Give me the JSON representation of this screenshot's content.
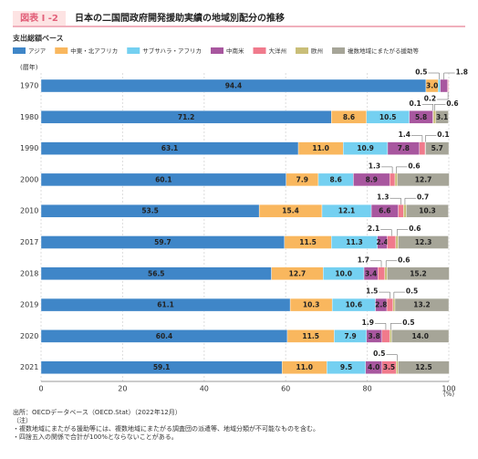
{
  "header": {
    "badge": "図表 I -2",
    "title": "日本の二国間政府開発援助実績の地域別配分の推移"
  },
  "chart_data": {
    "type": "stacked-bar-horizontal",
    "subtitle": "支出総額ベース",
    "y_axis_label": "(暦年)",
    "x_axis_label": "(%)",
    "categories": [
      "1970",
      "1980",
      "1990",
      "2000",
      "2010",
      "2017",
      "2018",
      "2019",
      "2020",
      "2021"
    ],
    "series": [
      {
        "name": "アジア",
        "color": "#3f86c8",
        "values": [
          94.4,
          71.2,
          63.1,
          60.1,
          53.5,
          59.7,
          56.5,
          61.1,
          60.4,
          59.1
        ],
        "value_labels": [
          "94.4",
          "71.2",
          "63.1",
          "60.1",
          "53.5",
          "59.7",
          "56.5",
          "61.1",
          "60.4",
          "59.1"
        ]
      },
      {
        "name": "中東・北アフリカ",
        "color": "#f9b75e",
        "values": [
          3.0,
          8.6,
          11.0,
          7.9,
          15.4,
          11.5,
          12.7,
          10.3,
          11.5,
          11.0
        ],
        "value_labels": [
          "3.0",
          "8.6",
          "11.0",
          "7.9",
          "15.4",
          "11.5",
          "12.7",
          "10.3",
          "11.5",
          "11.0"
        ]
      },
      {
        "name": "サブサハラ・アフリカ",
        "color": "#74d0f1",
        "values": [
          0.5,
          10.5,
          10.9,
          8.6,
          12.1,
          11.3,
          10.0,
          10.6,
          7.9,
          9.5
        ],
        "value_labels": [
          "0.5",
          "10.5",
          "10.9",
          "8.6",
          "12.1",
          "11.3",
          "10.0",
          "10.6",
          "7.9",
          "9.5"
        ]
      },
      {
        "name": "中南米",
        "color": "#a8579f",
        "values": [
          1.8,
          5.8,
          7.8,
          8.9,
          6.6,
          2.4,
          3.4,
          2.8,
          3.8,
          4.0
        ],
        "value_labels": [
          "1.8",
          "5.8",
          "7.8",
          "8.9",
          "6.6",
          "2.4",
          "3.4",
          "2.8",
          "3.8",
          "4.0"
        ]
      },
      {
        "name": "大洋州",
        "color": "#f07a8c",
        "values": [
          0.2,
          0.1,
          1.4,
          1.3,
          1.3,
          2.1,
          1.7,
          1.5,
          1.9,
          3.5
        ],
        "value_labels": [
          "0.2",
          "0.1",
          "1.4",
          "1.3",
          "1.3",
          "2.1",
          "1.7",
          "1.5",
          "1.9",
          "3.5"
        ]
      },
      {
        "name": "欧州",
        "color": "#c9be78",
        "values": [
          null,
          0.6,
          0.1,
          0.6,
          0.7,
          0.6,
          0.6,
          0.5,
          0.5,
          0.5
        ],
        "value_labels": [
          null,
          "0.6",
          "0.1",
          "0.6",
          "0.7",
          "0.6",
          "0.6",
          "0.5",
          "0.5",
          "0.5"
        ]
      },
      {
        "name": "複数地域にまたがる援助等",
        "color": "#a6a598",
        "values": [
          null,
          3.1,
          5.7,
          12.7,
          10.3,
          12.3,
          15.2,
          13.2,
          14.0,
          12.5
        ],
        "value_labels": [
          null,
          "3.1",
          "5.7",
          "12.7",
          "10.3",
          "12.3",
          "15.2",
          "13.2",
          "14.0",
          "12.5"
        ]
      }
    ],
    "xlim": [
      0,
      100
    ],
    "xticks": [
      0,
      20,
      40,
      60,
      80,
      100
    ],
    "grid": true
  },
  "notes": [
    "出所：OECDデータベース（OECD.Stat）（2022年12月）",
    "（注）",
    "・複数地域にまたがる援助等には、複数地域にまたがる調査団の派遣等、地域分類が不可能なものを含む。",
    "・四捨五入の関係で合計が100%とならないことがある。"
  ]
}
